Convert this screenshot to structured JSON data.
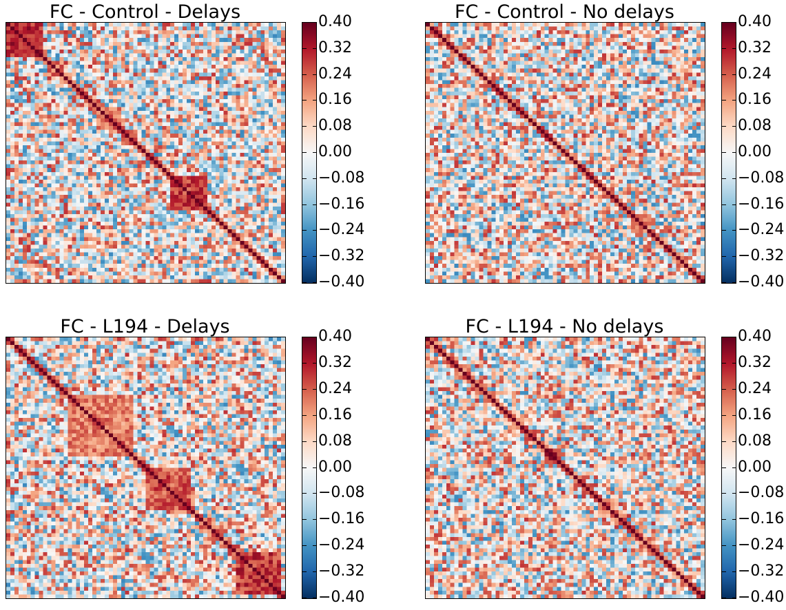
{
  "chart_data": [
    {
      "type": "heatmap",
      "title": "FC - Control - Delays",
      "clim": [
        -0.4,
        0.4
      ],
      "colormap": "RdBu_r",
      "colorbar_ticks": [
        "0.40",
        "0.32",
        "0.24",
        "0.16",
        "0.08",
        "0.00",
        "−0.08",
        "−0.16",
        "−0.24",
        "−0.32",
        "−0.40"
      ],
      "matrix_size": 68,
      "diagonal_value": 0.4,
      "blocks": [
        {
          "rows": [
            0,
            8
          ],
          "mean": 0.3
        },
        {
          "rows": [
            22,
            27
          ],
          "mean": 0.22
        },
        {
          "rows": [
            40,
            48
          ],
          "mean": 0.28
        }
      ]
    },
    {
      "type": "heatmap",
      "title": "FC - Control - No delays",
      "clim": [
        -0.4,
        0.4
      ],
      "colormap": "RdBu_r",
      "colorbar_ticks": [
        "0.40",
        "0.32",
        "0.24",
        "0.16",
        "0.08",
        "0.00",
        "−0.08",
        "−0.16",
        "−0.24",
        "−0.32",
        "−0.40"
      ],
      "matrix_size": 68,
      "diagonal_value": 0.4,
      "blocks": [
        {
          "rows": [
            50,
            54
          ],
          "mean": 0.2
        }
      ]
    },
    {
      "type": "heatmap",
      "title": "FC - L194 - Delays",
      "clim": [
        -0.4,
        0.4
      ],
      "colormap": "RdBu_r",
      "colorbar_ticks": [
        "0.40",
        "0.32",
        "0.24",
        "0.16",
        "0.08",
        "0.00",
        "−0.08",
        "−0.16",
        "−0.24",
        "−0.32",
        "−0.40"
      ],
      "matrix_size": 68,
      "diagonal_value": 0.4,
      "blocks": [
        {
          "rows": [
            15,
            30
          ],
          "mean": 0.2
        },
        {
          "rows": [
            34,
            44
          ],
          "mean": 0.25
        },
        {
          "rows": [
            56,
            66
          ],
          "mean": 0.28
        }
      ]
    },
    {
      "type": "heatmap",
      "title": "FC - L194 - No delays",
      "clim": [
        -0.4,
        0.4
      ],
      "colormap": "RdBu_r",
      "colorbar_ticks": [
        "0.40",
        "0.32",
        "0.24",
        "0.16",
        "0.08",
        "0.00",
        "−0.08",
        "−0.16",
        "−0.24",
        "−0.32",
        "−0.40"
      ],
      "matrix_size": 68,
      "diagonal_value": 0.4,
      "blocks": [
        {
          "rows": [
            29,
            32
          ],
          "mean": 0.3
        },
        {
          "rows": [
            42,
            46
          ],
          "mean": 0.18
        }
      ]
    }
  ]
}
